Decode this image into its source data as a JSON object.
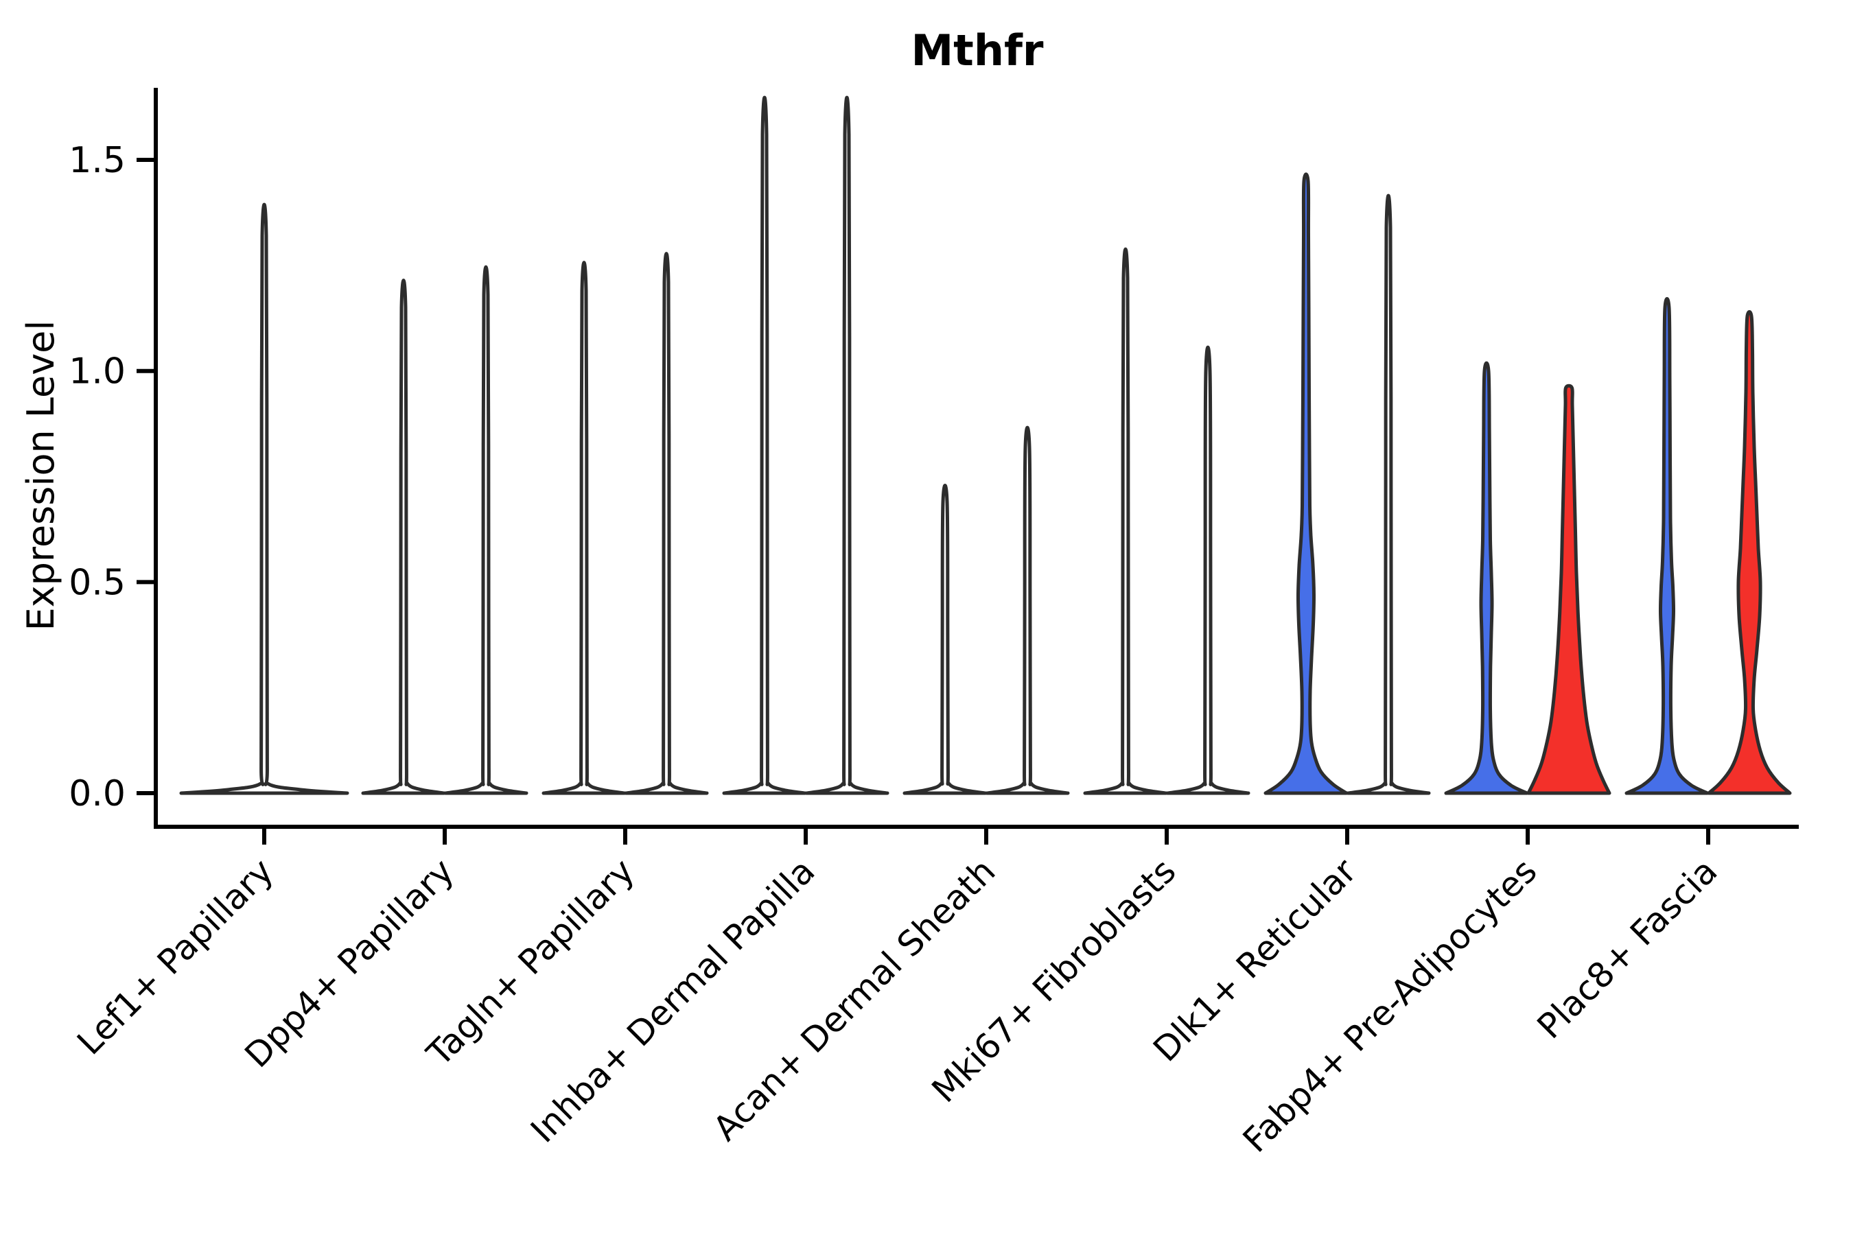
{
  "figure": {
    "title": "Mthfr",
    "ylabel": "Expression Level",
    "background_color": "#ffffff",
    "axis_color": "#000000",
    "violin_outline_color": "#2d2d2d",
    "group_colors": {
      "left": "#466FE8",
      "right": "#F3302A"
    }
  },
  "chart_data": {
    "type": "violin",
    "title": "Mthfr",
    "xlabel": "",
    "ylabel": "Expression Level",
    "ylim": [
      -0.09,
      1.67
    ],
    "yticks": [
      0.0,
      0.5,
      1.0,
      1.5
    ],
    "ytick_labels": [
      "0.0",
      "0.5",
      "1.0",
      "1.5"
    ],
    "grid": false,
    "legend": "none",
    "categories": [
      "Lef1+ Papillary",
      "Dpp4+ Papillary",
      "Tagln+ Papillary",
      "Inhba+ Dermal Papilla",
      "Acan+ Dermal Sheath",
      "Mki67+ Fibroblasts",
      "Dlk1+ Reticular",
      "Fabp4+ Pre-Adipocytes",
      "Plac8+ Fascia"
    ],
    "description": "Split violin plot; most expression mass at 0 (flat pancake bases with thin density spikes up to the max expressing cell). Colored violins (blue=left split, red=right split) appear only in Dlk1+ Reticular, Fabp4+ Pre-Adipocytes and Plac8+ Fascia.",
    "violins": [
      {
        "category": 0,
        "side": "full",
        "fill": "#ffffff",
        "shape": "spike",
        "max": 1.32
      },
      {
        "category": 1,
        "side": "left",
        "fill": "#ffffff",
        "shape": "spike",
        "max": 1.15
      },
      {
        "category": 1,
        "side": "right",
        "fill": "#ffffff",
        "shape": "spike",
        "max": 1.18
      },
      {
        "category": 2,
        "side": "left",
        "fill": "#ffffff",
        "shape": "spike",
        "max": 1.19
      },
      {
        "category": 2,
        "side": "right",
        "fill": "#ffffff",
        "shape": "spike",
        "max": 1.21
      },
      {
        "category": 3,
        "side": "left",
        "fill": "#ffffff",
        "shape": "spike",
        "max": 1.56
      },
      {
        "category": 3,
        "side": "right",
        "fill": "#ffffff",
        "shape": "spike",
        "max": 1.56
      },
      {
        "category": 4,
        "side": "left",
        "fill": "#ffffff",
        "shape": "spike",
        "max": 0.69
      },
      {
        "category": 4,
        "side": "right",
        "fill": "#ffffff",
        "shape": "spike",
        "max": 0.82
      },
      {
        "category": 5,
        "side": "left",
        "fill": "#ffffff",
        "shape": "spike",
        "max": 1.22
      },
      {
        "category": 5,
        "side": "right",
        "fill": "#ffffff",
        "shape": "spike",
        "max": 1.0
      },
      {
        "category": 6,
        "side": "left",
        "fill": "#466FE8",
        "shape": "profile",
        "max": 1.45,
        "profile": [
          [
            0,
            59
          ],
          [
            0.02,
            40
          ],
          [
            0.05,
            22
          ],
          [
            0.085,
            13
          ],
          [
            0.12,
            8
          ],
          [
            0.17,
            6
          ],
          [
            0.24,
            6
          ],
          [
            0.32,
            8
          ],
          [
            0.4,
            10.5
          ],
          [
            0.47,
            11.5
          ],
          [
            0.54,
            10
          ],
          [
            0.61,
            7
          ],
          [
            0.68,
            5.5
          ],
          [
            0.8,
            5
          ],
          [
            0.95,
            4.5
          ],
          [
            1.15,
            4
          ],
          [
            1.32,
            3.5
          ],
          [
            1.45,
            3
          ]
        ]
      },
      {
        "category": 6,
        "side": "right",
        "fill": "#ffffff",
        "shape": "spike",
        "max": 1.34
      },
      {
        "category": 7,
        "side": "left",
        "fill": "#466FE8",
        "shape": "profile",
        "max": 1.0,
        "profile": [
          [
            0,
            59
          ],
          [
            0.018,
            36
          ],
          [
            0.045,
            18
          ],
          [
            0.08,
            10
          ],
          [
            0.12,
            7
          ],
          [
            0.2,
            5.5
          ],
          [
            0.3,
            5.8
          ],
          [
            0.38,
            7
          ],
          [
            0.45,
            8
          ],
          [
            0.52,
            7
          ],
          [
            0.6,
            5.5
          ],
          [
            0.72,
            4.8
          ],
          [
            0.85,
            4.2
          ],
          [
            1.0,
            3
          ]
        ]
      },
      {
        "category": 7,
        "side": "right",
        "fill": "#F3302A",
        "shape": "profile",
        "max": 0.96,
        "profile": [
          [
            0,
            59
          ],
          [
            0.03,
            50
          ],
          [
            0.07,
            40
          ],
          [
            0.12,
            32
          ],
          [
            0.17,
            26
          ],
          [
            0.24,
            21
          ],
          [
            0.32,
            17
          ],
          [
            0.42,
            13.5
          ],
          [
            0.52,
            11
          ],
          [
            0.62,
            9.5
          ],
          [
            0.72,
            8
          ],
          [
            0.82,
            6.5
          ],
          [
            0.92,
            5
          ],
          [
            0.96,
            4.5
          ]
        ]
      },
      {
        "category": 8,
        "side": "left",
        "fill": "#466FE8",
        "shape": "profile",
        "max": 1.15,
        "profile": [
          [
            0,
            59
          ],
          [
            0.018,
            36
          ],
          [
            0.045,
            18
          ],
          [
            0.08,
            10
          ],
          [
            0.12,
            7
          ],
          [
            0.2,
            5.5
          ],
          [
            0.3,
            6
          ],
          [
            0.37,
            8
          ],
          [
            0.43,
            9.5
          ],
          [
            0.49,
            8.5
          ],
          [
            0.55,
            6.5
          ],
          [
            0.65,
            5
          ],
          [
            0.8,
            4.5
          ],
          [
            0.98,
            4
          ],
          [
            1.15,
            3
          ]
        ]
      },
      {
        "category": 8,
        "side": "right",
        "fill": "#F3302A",
        "shape": "profile",
        "max": 1.13,
        "profile": [
          [
            0,
            59
          ],
          [
            0.025,
            42
          ],
          [
            0.06,
            26
          ],
          [
            0.1,
            16
          ],
          [
            0.15,
            9
          ],
          [
            0.2,
            5.5
          ],
          [
            0.27,
            7
          ],
          [
            0.34,
            11
          ],
          [
            0.42,
            15
          ],
          [
            0.5,
            16
          ],
          [
            0.58,
            13
          ],
          [
            0.66,
            11
          ],
          [
            0.74,
            9
          ],
          [
            0.82,
            7
          ],
          [
            0.95,
            5
          ],
          [
            1.05,
            4.5
          ],
          [
            1.13,
            3
          ]
        ]
      }
    ]
  }
}
